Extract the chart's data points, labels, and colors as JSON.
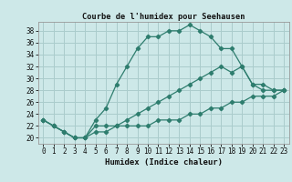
{
  "title": "Courbe de l'humidex pour Seehausen",
  "xlabel": "Humidex (Indice chaleur)",
  "bg_color": "#cde8e8",
  "grid_color": "#aacccc",
  "line_color": "#2e7d6e",
  "xlim": [
    -0.5,
    23.5
  ],
  "ylim": [
    19,
    39.5
  ],
  "yticks": [
    20,
    22,
    24,
    26,
    28,
    30,
    32,
    34,
    36,
    38
  ],
  "xticks": [
    0,
    1,
    2,
    3,
    4,
    5,
    6,
    7,
    8,
    9,
    10,
    11,
    12,
    13,
    14,
    15,
    16,
    17,
    18,
    19,
    20,
    21,
    22,
    23
  ],
  "series": [
    {
      "x": [
        0,
        1,
        2,
        3,
        4,
        5,
        6,
        7,
        8,
        9,
        10,
        11,
        12,
        13,
        14,
        15,
        16,
        17,
        18,
        19,
        20,
        21,
        22,
        23
      ],
      "y": [
        23,
        22,
        21,
        20,
        20,
        23,
        25,
        29,
        32,
        35,
        37,
        37,
        38,
        38,
        39,
        38,
        37,
        35,
        35,
        32,
        29,
        28,
        28,
        28
      ]
    },
    {
      "x": [
        0,
        1,
        2,
        3,
        4,
        5,
        6,
        7,
        8,
        9,
        10,
        11,
        12,
        13,
        14,
        15,
        16,
        17,
        18,
        19,
        20,
        21,
        22,
        23
      ],
      "y": [
        23,
        22,
        21,
        20,
        20,
        22,
        22,
        22,
        23,
        24,
        25,
        26,
        27,
        28,
        29,
        30,
        31,
        32,
        31,
        32,
        29,
        29,
        28,
        28
      ]
    },
    {
      "x": [
        0,
        1,
        2,
        3,
        4,
        5,
        6,
        7,
        8,
        9,
        10,
        11,
        12,
        13,
        14,
        15,
        16,
        17,
        18,
        19,
        20,
        21,
        22,
        23
      ],
      "y": [
        23,
        22,
        21,
        20,
        20,
        21,
        21,
        22,
        22,
        22,
        22,
        23,
        23,
        23,
        24,
        24,
        25,
        25,
        26,
        26,
        27,
        27,
        27,
        28
      ]
    }
  ]
}
